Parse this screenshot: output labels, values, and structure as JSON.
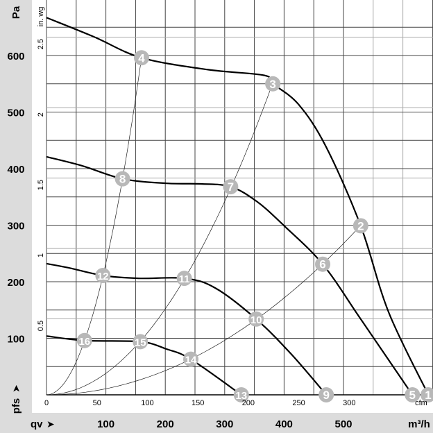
{
  "chart_data": {
    "type": "line",
    "title": "",
    "xlabel": "qv",
    "x_unit": "m³/h",
    "x_unit_secondary": "cfm",
    "ylabel": "pfs",
    "y_unit": "Pa",
    "y_unit_secondary": "in. wg",
    "xlim": [
      0,
      651
    ],
    "ylim": [
      0,
      698
    ],
    "grid": true,
    "x_ticks": [
      "100",
      "200",
      "300",
      "400",
      "500"
    ],
    "x_ticks_cfm": [
      "0",
      "50",
      "100",
      "150",
      "200",
      "250",
      "300"
    ],
    "y_ticks": [
      "100",
      "200",
      "300",
      "400",
      "500",
      "600"
    ],
    "y_ticks_inwg": [
      "0.5",
      "1",
      "1.5",
      "2",
      "2.5"
    ],
    "fan_curves": [
      {
        "points": [
          [
            0,
            667
          ],
          [
            80,
            633
          ],
          [
            160,
            596
          ],
          [
            272,
            575
          ],
          [
            366,
            565
          ],
          [
            381,
            550
          ],
          [
            424,
            514
          ],
          [
            470,
            440
          ],
          [
            529,
            299
          ],
          [
            576,
            146
          ],
          [
            643,
            0
          ]
        ]
      },
      {
        "points": [
          [
            0,
            421
          ],
          [
            60,
            405
          ],
          [
            128,
            382
          ],
          [
            202,
            374
          ],
          [
            260,
            373
          ],
          [
            310,
            368
          ],
          [
            354,
            342
          ],
          [
            400,
            299
          ],
          [
            465,
            231
          ],
          [
            529,
            134
          ],
          [
            616,
            0
          ]
        ]
      },
      {
        "points": [
          [
            0,
            232
          ],
          [
            40,
            224
          ],
          [
            95,
            211
          ],
          [
            155,
            206
          ],
          [
            232,
            206
          ],
          [
            284,
            189
          ],
          [
            353,
            134
          ],
          [
            412,
            72
          ],
          [
            471,
            0
          ]
        ]
      },
      {
        "points": [
          [
            0,
            104
          ],
          [
            64,
            96
          ],
          [
            158,
            94
          ],
          [
            202,
            81
          ],
          [
            243,
            63
          ],
          [
            328,
            0
          ]
        ]
      }
    ],
    "system_curves": [
      {
        "k": 0.0233,
        "to": 160
      },
      {
        "k": 0.0038,
        "to": 381
      },
      {
        "k": 0.00107,
        "to": 529
      }
    ],
    "markers": [
      {
        "label": "1",
        "x": 643,
        "y": 0
      },
      {
        "label": "2",
        "x": 529,
        "y": 299
      },
      {
        "label": "3",
        "x": 381,
        "y": 550
      },
      {
        "label": "4",
        "x": 160,
        "y": 596
      },
      {
        "label": "5",
        "x": 616,
        "y": 0
      },
      {
        "label": "6",
        "x": 465,
        "y": 231
      },
      {
        "label": "7",
        "x": 310,
        "y": 368
      },
      {
        "label": "8",
        "x": 128,
        "y": 382
      },
      {
        "label": "9",
        "x": 471,
        "y": 0
      },
      {
        "label": "10",
        "x": 353,
        "y": 134
      },
      {
        "label": "11",
        "x": 232,
        "y": 206
      },
      {
        "label": "12",
        "x": 95,
        "y": 211
      },
      {
        "label": "13",
        "x": 328,
        "y": 0
      },
      {
        "label": "14",
        "x": 243,
        "y": 63
      },
      {
        "label": "15",
        "x": 158,
        "y": 94
      },
      {
        "label": "16",
        "x": 64,
        "y": 96
      }
    ],
    "colors": {
      "panel": "#dcdcdc",
      "marker": "#b8b8b8",
      "curve": "#000000"
    }
  }
}
